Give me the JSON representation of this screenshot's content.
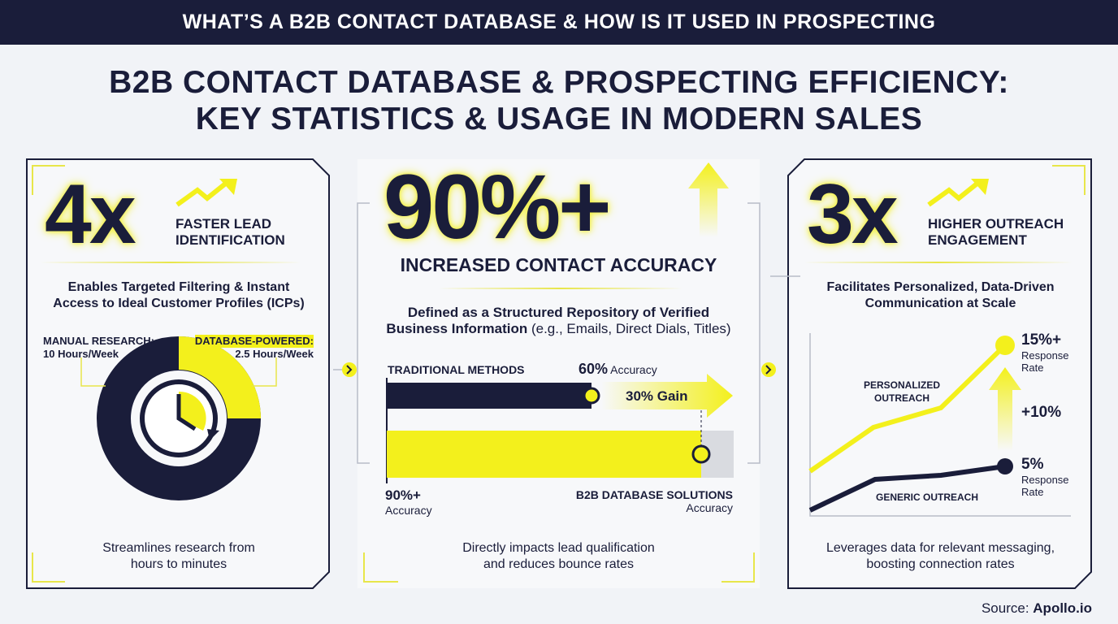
{
  "header": {
    "banner": "WHAT’S A B2B CONTACT DATABASE & HOW IS IT USED IN PROSPECTING",
    "title_line1": "B2B CONTACT DATABASE & PROSPECTING EFFICIENCY:",
    "title_line2": "KEY STATISTICS & USAGE IN MODERN SALES"
  },
  "left": {
    "stat": "4x",
    "label1": "FASTER LEAD",
    "label2": "IDENTIFICATION",
    "subtitle1": "Enables Targeted Filtering & Instant",
    "subtitle2": "Access to Ideal Customer Profiles (ICPs)",
    "manual_label": "MANUAL RESEARCH:",
    "manual_value": "10 Hours/Week",
    "db_label": "DATABASE-POWERED:",
    "db_value": "2.5 Hours/Week",
    "manual_hours": 10,
    "db_hours": 2.5,
    "footer1": "Streamlines research from",
    "footer2": "hours to minutes"
  },
  "middle": {
    "stat": "90%+",
    "label": "INCREASED CONTACT ACCURACY",
    "subtitle1": "Defined as a Structured Repository of Verified",
    "subtitle2_bold": "Business Information",
    "subtitle2_rest": " (e.g., Emails, Direct Dials, Titles)",
    "traditional_label": "TRADITIONAL METHODS",
    "traditional_pct": "60%",
    "traditional_acc": " Accuracy",
    "gain": "30% Gain",
    "db_pct": "90%+",
    "db_acc": "Accuracy",
    "db_label": "B2B DATABASE SOLUTIONS",
    "db_acc2": "Accuracy",
    "traditional_value": 60,
    "db_value": 90,
    "footer1": "Directly impacts lead qualification",
    "footer2": "and reduces bounce rates"
  },
  "right": {
    "stat": "3x",
    "label1": "HIGHER OUTREACH",
    "label2": "ENGAGEMENT",
    "subtitle1": "Facilitates Personalized, Data-Driven",
    "subtitle2": "Communication at Scale",
    "personalized_label1": "PERSONALIZED",
    "personalized_label2": "OUTREACH",
    "generic_label": "GENERIC OUTREACH",
    "high_value": "15%+",
    "high_text1": "Response",
    "high_text2": "Rate",
    "delta": "+10%",
    "low_value": "5%",
    "low_text1": "Response",
    "low_text2": "Rate",
    "footer1": "Leverages data for relevant messaging,",
    "footer2": "boosting connection rates"
  },
  "source": {
    "label": "Source: ",
    "name": "Apollo.io"
  },
  "colors": {
    "navy": "#1a1d3a",
    "yellow": "#f3f01c"
  }
}
